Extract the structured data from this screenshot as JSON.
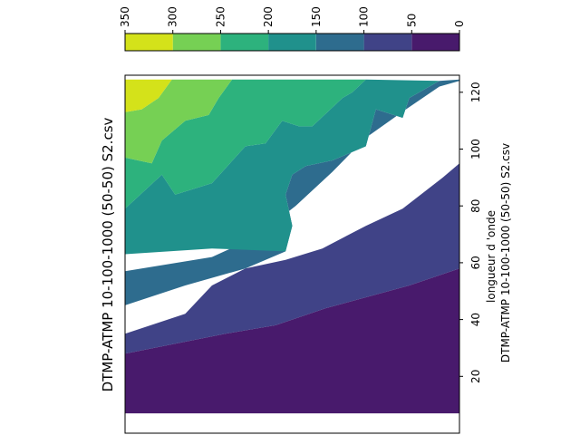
{
  "chart_data": {
    "type": "contourf",
    "title": "DTMP-ATMP 10-100-1000 (50-50) S2.csv",
    "ylabel": "longueur d 'onde",
    "ylabel_secondary": "DTMP-ATMP 10-100-1000 (50-50) S2.csv",
    "y_ticks": [
      20,
      40,
      60,
      80,
      100,
      120
    ],
    "ylim": [
      0,
      126
    ],
    "levels": [
      0,
      50,
      100,
      150,
      200,
      250,
      300,
      350
    ],
    "colorbar_ticks": [
      "0",
      "50",
      "100",
      "150",
      "200",
      "250",
      "300",
      "350"
    ],
    "colors": [
      "#481a6c",
      "#404387",
      "#2e6c8e",
      "#20918c",
      "#2db27d",
      "#76d054",
      "#d4e21a"
    ],
    "bands": [
      {
        "level_range": [
          0,
          50
        ],
        "color": "#481a6c",
        "polygons": [
          [
            [
              0.0,
              7.0
            ],
            [
              1.0,
              7.0
            ],
            [
              1.0,
              58.0
            ],
            [
              0.85,
              52.0
            ],
            [
              0.6,
              44.0
            ],
            [
              0.45,
              38.0
            ],
            [
              0.3,
              35.0
            ],
            [
              0.0,
              28.0
            ]
          ]
        ]
      },
      {
        "level_range": [
          50,
          100
        ],
        "color": "#404387",
        "polygons": [
          [
            [
              0.0,
              28.0
            ],
            [
              0.3,
              35.0
            ],
            [
              0.45,
              38.0
            ],
            [
              0.6,
              44.0
            ],
            [
              0.85,
              52.0
            ],
            [
              1.0,
              58.0
            ],
            [
              1.0,
              95.0
            ],
            [
              0.95,
              90.0
            ],
            [
              0.83,
              79.0
            ],
            [
              0.72,
              73.0
            ],
            [
              0.59,
              65.0
            ],
            [
              0.48,
              61.0
            ],
            [
              0.36,
              58.0
            ],
            [
              0.26,
              52.0
            ],
            [
              0.18,
              42.0
            ],
            [
              0.0,
              35.0
            ]
          ]
        ]
      },
      {
        "level_range": [
          100,
          150
        ],
        "color": "#2e6c8e",
        "polygons": [
          [
            [
              0.0,
              45.0
            ],
            [
              0.18,
              52.0
            ],
            [
              0.36,
              58.0
            ],
            [
              0.48,
              64.0
            ],
            [
              0.5,
              73.0
            ],
            [
              0.48,
              84.0
            ],
            [
              0.5,
              91.0
            ],
            [
              0.54,
              94.0
            ],
            [
              0.62,
              96.0
            ],
            [
              0.72,
              101.0
            ],
            [
              0.75,
              114.0
            ],
            [
              0.83,
              111.0
            ],
            [
              0.85,
              118.0
            ],
            [
              0.91,
              122.0
            ],
            [
              0.94,
              124.0
            ],
            [
              1.0,
              124.5
            ],
            [
              1.0,
              124.0
            ],
            [
              0.94,
              122.0
            ],
            [
              0.84,
              114.0
            ],
            [
              0.72,
              104.0
            ],
            [
              0.62,
              92.0
            ],
            [
              0.51,
              80.0
            ],
            [
              0.39,
              69.0
            ],
            [
              0.26,
              62.0
            ],
            [
              0.0,
              57.0
            ]
          ],
          [
            [
              0.0,
              63.0
            ],
            [
              0.0,
              63.0
            ]
          ]
        ]
      },
      {
        "level_range": [
          150,
          200
        ],
        "color": "#20918c",
        "polygons": [
          [
            [
              0.0,
              63.0
            ],
            [
              0.26,
              65.0
            ],
            [
              0.48,
              64.0
            ],
            [
              0.5,
              73.0
            ],
            [
              0.48,
              84.0
            ],
            [
              0.5,
              91.0
            ],
            [
              0.54,
              94.0
            ],
            [
              0.62,
              96.0
            ],
            [
              0.72,
              101.0
            ],
            [
              0.75,
              114.0
            ],
            [
              0.83,
              111.0
            ],
            [
              0.85,
              118.0
            ],
            [
              0.91,
              122.0
            ],
            [
              0.94,
              124.0
            ],
            [
              0.72,
              124.5
            ],
            [
              0.68,
              120.0
            ],
            [
              0.65,
              118.0
            ],
            [
              0.56,
              108.0
            ],
            [
              0.52,
              108.0
            ],
            [
              0.47,
              110.0
            ],
            [
              0.42,
              102.0
            ],
            [
              0.36,
              101.0
            ],
            [
              0.26,
              88.0
            ],
            [
              0.15,
              84.0
            ],
            [
              0.11,
              91.0
            ],
            [
              0.0,
              79.0
            ]
          ]
        ]
      },
      {
        "level_range": [
          200,
          250
        ],
        "color": "#2db27d",
        "polygons": [
          [
            [
              0.0,
              79.0
            ],
            [
              0.11,
              91.0
            ],
            [
              0.15,
              84.0
            ],
            [
              0.26,
              88.0
            ],
            [
              0.36,
              101.0
            ],
            [
              0.42,
              102.0
            ],
            [
              0.47,
              110.0
            ],
            [
              0.52,
              108.0
            ],
            [
              0.56,
              108.0
            ],
            [
              0.65,
              118.0
            ],
            [
              0.68,
              120.0
            ],
            [
              0.72,
              124.5
            ],
            [
              0.32,
              124.5
            ],
            [
              0.28,
              118.0
            ],
            [
              0.25,
              112.0
            ],
            [
              0.18,
              110.0
            ],
            [
              0.11,
              103.0
            ],
            [
              0.08,
              95.0
            ],
            [
              0.0,
              97.0
            ]
          ]
        ]
      },
      {
        "level_range": [
          250,
          300
        ],
        "color": "#76d054",
        "polygons": [
          [
            [
              0.0,
              97.0
            ],
            [
              0.08,
              95.0
            ],
            [
              0.11,
              103.0
            ],
            [
              0.18,
              110.0
            ],
            [
              0.25,
              112.0
            ],
            [
              0.28,
              118.0
            ],
            [
              0.32,
              124.5
            ],
            [
              0.14,
              124.5
            ],
            [
              0.1,
              118.0
            ],
            [
              0.05,
              114.0
            ],
            [
              0.0,
              113.0
            ]
          ]
        ]
      },
      {
        "level_range": [
          300,
          350
        ],
        "color": "#d4e21a",
        "polygons": [
          [
            [
              0.0,
              113.0
            ],
            [
              0.05,
              114.0
            ],
            [
              0.1,
              118.0
            ],
            [
              0.14,
              124.5
            ],
            [
              0.0,
              124.5
            ]
          ]
        ]
      }
    ]
  }
}
